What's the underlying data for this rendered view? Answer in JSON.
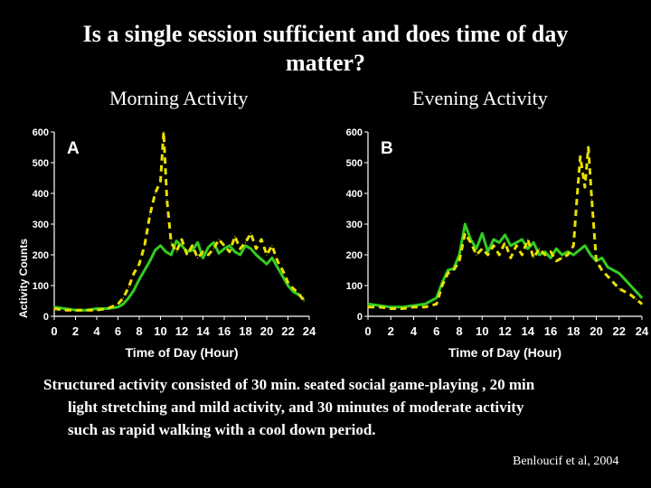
{
  "slide": {
    "title_line1": "Is a single session sufficient and does time of day",
    "title_line2": "matter?",
    "panel_a_title": "Morning Activity",
    "panel_b_title": "Evening Activity",
    "caption_line1": "Structured activity consisted of 30 min. seated social game-playing , 20 min",
    "caption_line2": "light stretching and mild activity, and 30 minutes of moderate activity",
    "caption_line3": "such as rapid walking with a cool down period.",
    "citation": "Benloucif et al, 2004"
  },
  "colors": {
    "background": "#000000",
    "green_series": "#33cc22",
    "yellow_series": "#e8e000",
    "text": "#ffffff"
  },
  "chart_data": [
    {
      "type": "line",
      "panel_letter": "A",
      "title": "Morning Activity",
      "xlabel": "Time of Day (Hour)",
      "ylabel": "Activity Counts",
      "xlim": [
        0,
        24
      ],
      "ylim": [
        0,
        600
      ],
      "xticks": [
        0,
        2,
        4,
        6,
        8,
        10,
        12,
        14,
        16,
        18,
        20,
        22,
        24
      ],
      "yticks": [
        0,
        100,
        200,
        300,
        400,
        500,
        600
      ],
      "series": [
        {
          "name": "green",
          "style": "solid",
          "color": "#33cc22",
          "x": [
            0,
            1,
            2,
            3,
            4,
            5,
            6,
            6.5,
            7,
            7.5,
            8,
            8.5,
            9,
            9.5,
            10,
            10.5,
            11,
            11.5,
            12,
            12.5,
            13,
            13.5,
            14,
            14.5,
            15,
            15.5,
            16,
            16.5,
            17,
            17.5,
            18,
            18.5,
            19,
            19.5,
            20,
            20.5,
            21,
            21.5,
            22,
            22.5,
            23,
            23.5
          ],
          "y": [
            30,
            25,
            20,
            20,
            25,
            25,
            30,
            40,
            60,
            85,
            120,
            150,
            180,
            215,
            230,
            210,
            200,
            245,
            230,
            210,
            215,
            240,
            190,
            225,
            240,
            205,
            220,
            230,
            210,
            200,
            230,
            220,
            200,
            185,
            170,
            190,
            160,
            130,
            100,
            80,
            70,
            55
          ]
        },
        {
          "name": "yellow",
          "style": "dashed",
          "color": "#e8e000",
          "x": [
            0,
            1,
            2,
            3,
            4,
            5,
            6,
            6.5,
            7,
            7.5,
            8,
            8.5,
            9,
            9.5,
            10,
            10.3,
            10.6,
            11,
            11.5,
            12,
            12.5,
            13,
            13.5,
            14,
            14.5,
            15,
            15.5,
            16,
            16.5,
            17,
            17.5,
            18,
            18.5,
            19,
            19.5,
            20,
            20.5,
            21,
            21.5,
            22,
            22.5,
            23,
            23.5
          ],
          "y": [
            25,
            20,
            20,
            20,
            20,
            25,
            40,
            60,
            95,
            140,
            170,
            230,
            330,
            400,
            440,
            600,
            380,
            240,
            210,
            250,
            200,
            230,
            190,
            210,
            200,
            220,
            250,
            230,
            210,
            260,
            220,
            240,
            270,
            220,
            250,
            200,
            230,
            180,
            150,
            110,
            90,
            75,
            50
          ]
        }
      ]
    },
    {
      "type": "line",
      "panel_letter": "B",
      "title": "Evening Activity",
      "xlabel": "Time of Day (Hour)",
      "ylabel": "",
      "xlim": [
        0,
        24
      ],
      "ylim": [
        0,
        600
      ],
      "xticks": [
        0,
        2,
        4,
        6,
        8,
        10,
        12,
        14,
        16,
        18,
        20,
        22,
        24
      ],
      "yticks": [
        0,
        100,
        200,
        300,
        400,
        500,
        600
      ],
      "series": [
        {
          "name": "green",
          "style": "solid",
          "color": "#33cc22",
          "x": [
            0,
            1,
            2,
            3,
            4,
            5,
            6,
            6.5,
            7,
            7.5,
            8,
            8.5,
            9,
            9.5,
            10,
            10.5,
            11,
            11.5,
            12,
            12.5,
            13,
            13.5,
            14,
            14.5,
            15,
            15.5,
            16,
            16.5,
            17,
            17.5,
            18,
            18.5,
            19,
            19.5,
            20,
            20.5,
            21,
            21.5,
            22,
            22.5,
            23,
            23.5,
            24
          ],
          "y": [
            40,
            35,
            30,
            30,
            35,
            40,
            60,
            110,
            150,
            155,
            200,
            300,
            250,
            220,
            270,
            210,
            250,
            240,
            265,
            230,
            240,
            250,
            220,
            240,
            200,
            210,
            190,
            220,
            200,
            210,
            200,
            215,
            230,
            200,
            180,
            190,
            160,
            150,
            140,
            120,
            100,
            80,
            60
          ]
        },
        {
          "name": "yellow",
          "style": "dashed",
          "color": "#e8e000",
          "x": [
            0,
            1,
            2,
            3,
            4,
            5,
            6,
            6.5,
            7,
            7.5,
            8,
            8.5,
            9,
            9.5,
            10,
            10.5,
            11,
            11.5,
            12,
            12.5,
            13,
            13.5,
            14,
            14.5,
            15,
            15.5,
            16,
            16.5,
            17,
            17.5,
            18,
            18.3,
            18.6,
            19,
            19.3,
            19.6,
            20,
            20.5,
            21,
            21.5,
            22,
            22.5,
            23,
            23.5,
            24
          ],
          "y": [
            30,
            30,
            25,
            25,
            30,
            30,
            40,
            100,
            140,
            150,
            180,
            270,
            240,
            200,
            220,
            200,
            230,
            200,
            240,
            190,
            230,
            200,
            250,
            190,
            220,
            200,
            210,
            180,
            190,
            200,
            230,
            380,
            520,
            420,
            550,
            380,
            180,
            150,
            130,
            110,
            90,
            80,
            70,
            55,
            40
          ]
        }
      ]
    }
  ]
}
